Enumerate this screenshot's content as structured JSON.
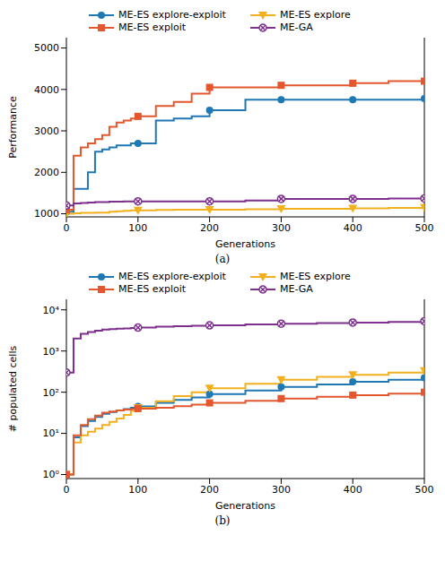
{
  "chart_data": [
    {
      "type": "line",
      "title": "(a)",
      "x_label": "Generations",
      "y_label": "Performance",
      "legend": "top",
      "x": [
        0,
        10,
        20,
        30,
        40,
        50,
        60,
        70,
        80,
        90,
        100,
        125,
        150,
        175,
        200,
        250,
        300,
        350,
        400,
        450,
        500
      ],
      "xlim": [
        0,
        500
      ],
      "xticks": [
        0,
        100,
        200,
        300,
        400,
        500
      ],
      "ylim": [
        925,
        5250
      ],
      "yticks": [
        1000,
        2000,
        3000,
        4000,
        5000
      ],
      "series": [
        {
          "name": "ME-ES explore-exploit",
          "color": "#1f77b4",
          "marker": "circle",
          "values": [
            1050,
            1600,
            1600,
            2000,
            2500,
            2550,
            2600,
            2650,
            2650,
            2700,
            2700,
            3250,
            3300,
            3350,
            3500,
            3750,
            3750,
            3750,
            3750,
            3750,
            3780
          ]
        },
        {
          "name": "ME-ES explore",
          "color": "#f2b01e",
          "marker": "triangle",
          "values": [
            1000,
            1010,
            1020,
            1020,
            1030,
            1030,
            1050,
            1060,
            1070,
            1080,
            1080,
            1090,
            1100,
            1100,
            1100,
            1110,
            1120,
            1120,
            1130,
            1140,
            1150
          ]
        },
        {
          "name": "ME-ES exploit",
          "color": "#e4572e",
          "marker": "square",
          "values": [
            1100,
            2400,
            2600,
            2700,
            2800,
            2900,
            3100,
            3200,
            3250,
            3300,
            3350,
            3600,
            3700,
            3900,
            4050,
            4050,
            4100,
            4100,
            4150,
            4200,
            4200
          ]
        },
        {
          "name": "ME-GA",
          "color": "#7e2f8e",
          "marker": "x",
          "values": [
            1200,
            1250,
            1260,
            1270,
            1280,
            1280,
            1290,
            1290,
            1300,
            1300,
            1300,
            1300,
            1300,
            1300,
            1300,
            1320,
            1360,
            1360,
            1360,
            1370,
            1370
          ]
        }
      ]
    },
    {
      "type": "line",
      "title": "(b)",
      "x_label": "Generations",
      "y_label": "# populated cells",
      "legend": "top",
      "log": "y",
      "x": [
        0,
        10,
        20,
        30,
        40,
        50,
        60,
        70,
        80,
        90,
        100,
        125,
        150,
        175,
        200,
        250,
        300,
        350,
        400,
        450,
        500
      ],
      "xlim": [
        0,
        500
      ],
      "xticks": [
        0,
        100,
        200,
        300,
        400,
        500
      ],
      "ylim": [
        0.8,
        18000
      ],
      "yticks": [
        {
          "value": 1,
          "label": "10⁰"
        },
        {
          "value": 10,
          "label": "10¹"
        },
        {
          "value": 100,
          "label": "10²"
        },
        {
          "value": 1000,
          "label": "10³"
        },
        {
          "value": 10000,
          "label": "10⁴"
        }
      ],
      "series": [
        {
          "name": "ME-ES explore-exploit",
          "color": "#1f77b4",
          "marker": "circle",
          "values": [
            1,
            8,
            15,
            20,
            25,
            30,
            33,
            36,
            39,
            42,
            45,
            55,
            65,
            75,
            90,
            110,
            135,
            155,
            180,
            200,
            225
          ]
        },
        {
          "name": "ME-ES explore",
          "color": "#f2b01e",
          "marker": "triangle",
          "values": [
            1,
            6,
            9,
            11,
            13,
            16,
            19,
            23,
            28,
            35,
            42,
            60,
            80,
            100,
            125,
            160,
            200,
            235,
            265,
            300,
            330
          ]
        },
        {
          "name": "ME-ES exploit",
          "color": "#e4572e",
          "marker": "square",
          "values": [
            1,
            9,
            16,
            22,
            27,
            32,
            34,
            36,
            38,
            39,
            40,
            42,
            46,
            50,
            55,
            62,
            70,
            77,
            85,
            92,
            100
          ]
        },
        {
          "name": "ME-GA",
          "color": "#7e2f8e",
          "marker": "x",
          "values": [
            300,
            2000,
            2600,
            2900,
            3100,
            3300,
            3400,
            3500,
            3550,
            3600,
            3700,
            3900,
            4000,
            4100,
            4200,
            4400,
            4600,
            4800,
            4900,
            5100,
            5300
          ]
        }
      ]
    }
  ]
}
